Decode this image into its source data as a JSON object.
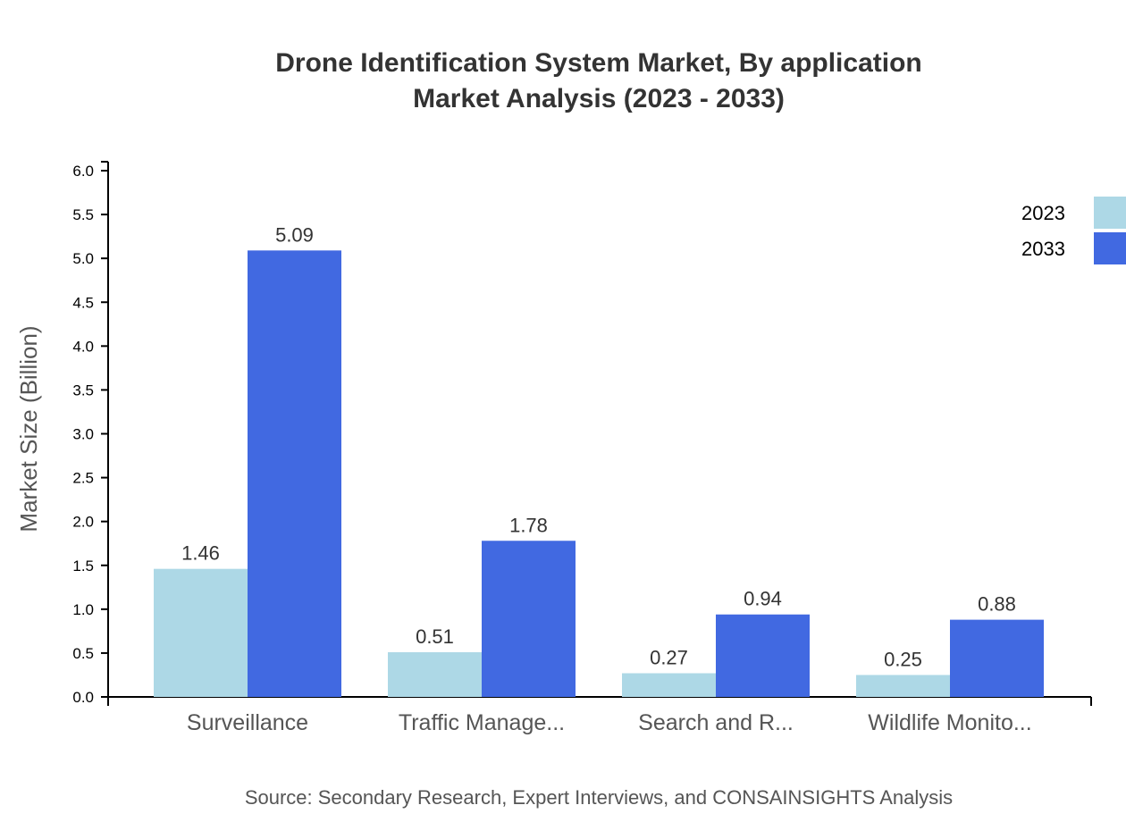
{
  "chart_data": {
    "type": "bar",
    "title": "Drone Identification System Market, By application",
    "subtitle": "Market Analysis (2023 - 2033)",
    "ylabel": "Market Size (Billion)",
    "xlabel": "",
    "ylim": [
      0,
      6.0
    ],
    "yticks": [
      "0.0",
      "0.5",
      "1.0",
      "1.5",
      "2.0",
      "2.5",
      "3.0",
      "3.5",
      "4.0",
      "4.5",
      "5.0",
      "5.5",
      "6.0"
    ],
    "categories": [
      "Surveillance",
      "Traffic Manage...",
      "Search and R...",
      "Wildlife Monito..."
    ],
    "series": [
      {
        "name": "2023",
        "color": "#add8e6",
        "values": [
          1.46,
          0.51,
          0.27,
          0.25
        ]
      },
      {
        "name": "2033",
        "color": "#4169e1",
        "values": [
          5.09,
          1.78,
          0.94,
          0.88
        ]
      }
    ],
    "legend_position": "top-right",
    "grid": false
  },
  "source": "Source: Secondary Research, Expert Interviews, and CONSAINSIGHTS Analysis"
}
